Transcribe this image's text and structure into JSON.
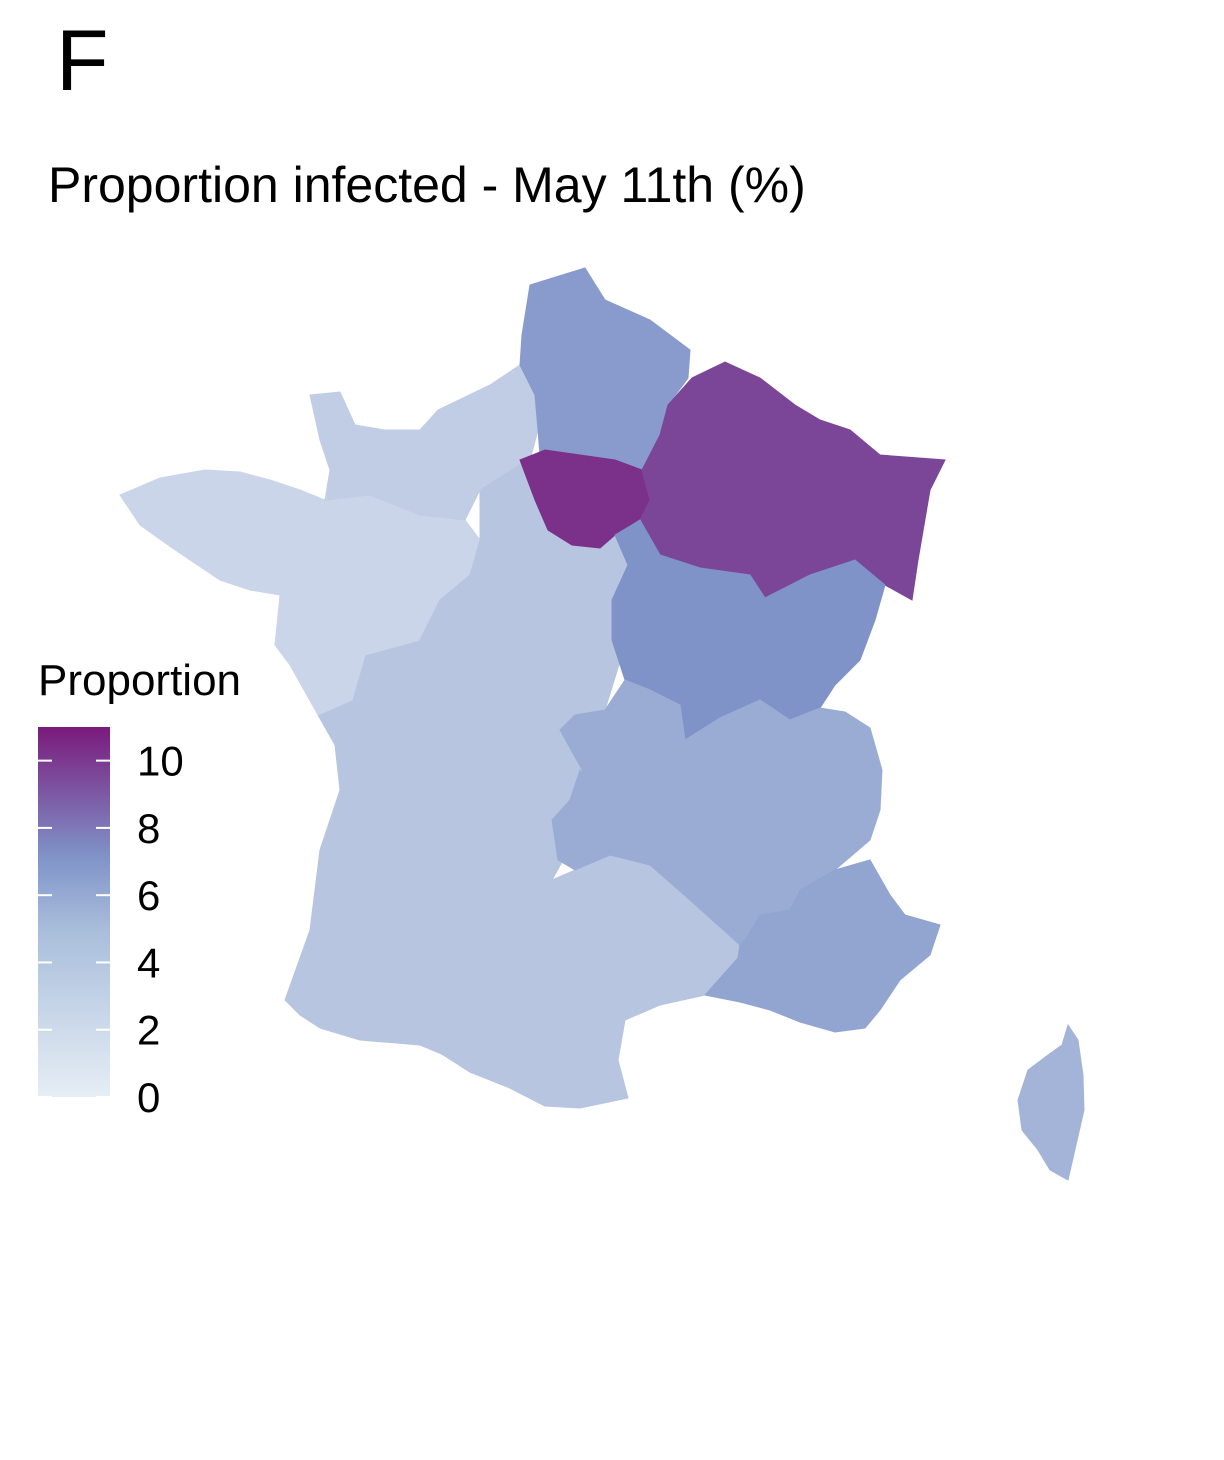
{
  "panel_label": "F",
  "title": "Proportion infected - May 11th (%)",
  "legend": {
    "title": "Proportion",
    "ticks": [
      "0",
      "2",
      "4",
      "6",
      "8",
      "10"
    ],
    "tick_values": [
      0,
      2,
      4,
      6,
      8,
      10
    ],
    "range": [
      0,
      11
    ],
    "low_color": "#e6eef5",
    "mid_color": "#7f93c8",
    "high_color": "#7a1a7c"
  },
  "chart_data": {
    "type": "heatmap",
    "title": "Proportion infected - May 11th (%)",
    "legend_title": "Proportion",
    "legend_placement": "left",
    "scale_range": [
      0,
      11
    ],
    "regions": [
      {
        "id": "hauts-de-france",
        "value": 5.0
      },
      {
        "id": "normandie",
        "value": 2.0
      },
      {
        "id": "bretagne",
        "value": 1.5
      },
      {
        "id": "pays-de-la-loire",
        "value": 1.5
      },
      {
        "id": "ile-de-france",
        "value": 10.0
      },
      {
        "id": "grand-est",
        "value": 9.0
      },
      {
        "id": "centre-val-de-loire",
        "value": 2.5
      },
      {
        "id": "bourgogne-franche-comte",
        "value": 5.5
      },
      {
        "id": "nouvelle-aquitaine",
        "value": 2.5
      },
      {
        "id": "auvergne-rhone-alpes",
        "value": 4.0
      },
      {
        "id": "occitanie",
        "value": 2.5
      },
      {
        "id": "provence-alpes-cote-dazur",
        "value": 4.5
      },
      {
        "id": "corse",
        "value": 3.5
      }
    ]
  }
}
